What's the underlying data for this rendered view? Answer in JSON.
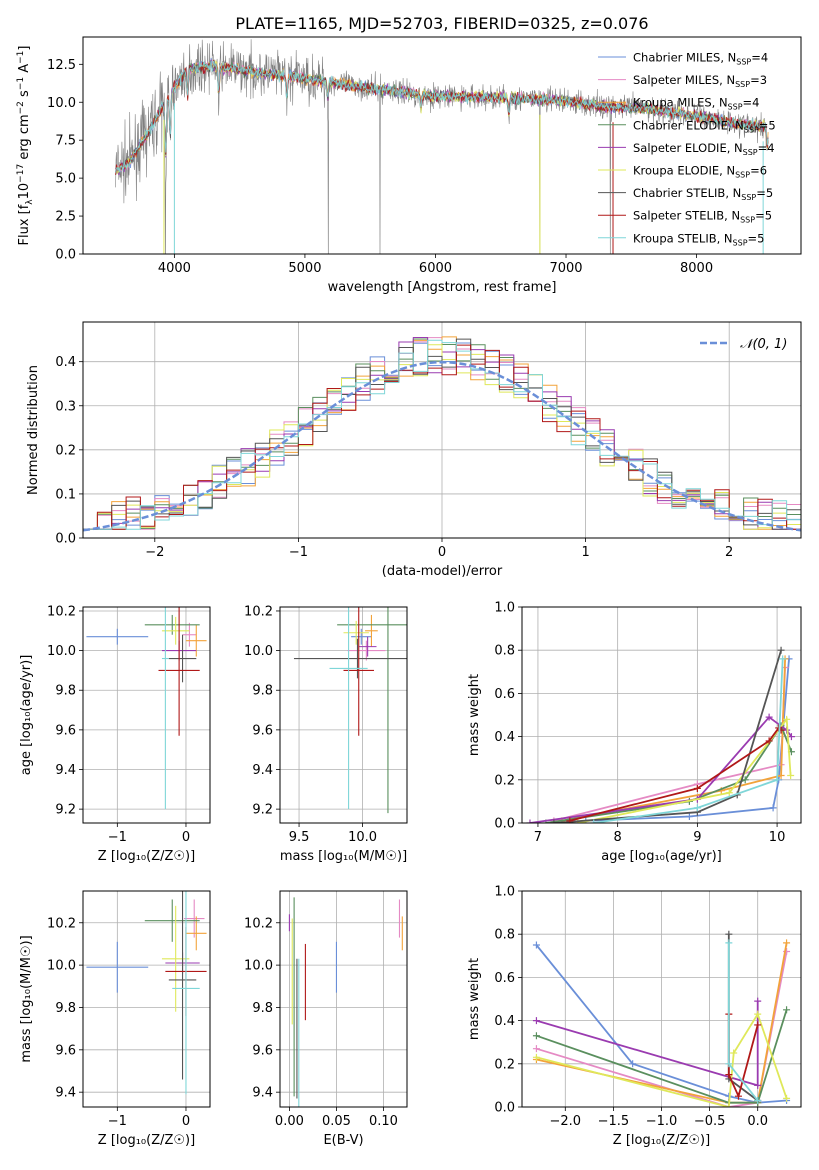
{
  "colors": {
    "chabrier_miles": "#6a8fd8",
    "salpeter_miles": "#e58ac4",
    "kroupa_miles": "#f2a33a",
    "chabrier_elodie": "#5a8f5e",
    "salpeter_elodie": "#9a3bb0",
    "kroupa_elodie": "#dfe85a",
    "chabrier_stelib": "#555555",
    "salpeter_stelib": "#b01818",
    "kroupa_stelib": "#7fd6d8",
    "gaussian": "#6a8fd8",
    "grid": "#b0b0b0",
    "spectrum": "#808080"
  },
  "legend": {
    "chabrier_miles": "Chabrier MILES, N",
    "salpeter_miles": "Salpeter MILES, N",
    "kroupa_miles": "Kroupa MILES, N",
    "chabrier_elodie": "Chabrier ELODIE, N",
    "salpeter_elodie": "Salpeter ELODIE, N",
    "kroupa_elodie": "Kroupa ELODIE, N",
    "chabrier_stelib": "Chabrier STELIB, N",
    "salpeter_stelib": "Salpeter STELIB, N",
    "kroupa_stelib": "Kroupa STELIB, N",
    "sub": "SSP",
    "n_values": [
      "=4",
      "=3",
      "=4",
      "=5",
      "=4",
      "=6",
      "=5",
      "=5",
      "=5"
    ]
  },
  "chart_data": [
    {
      "panel": "spectrum",
      "type": "line",
      "title": "PLATE=1165, MJD=52703, FIBERID=0325, z=0.076",
      "xlabel": "wavelength [Angstrom, rest frame]",
      "ylabel_main": "Flux [f",
      "ylabel_sub": "λ",
      "ylabel_mid": "10",
      "ylabel_sup1": "−17",
      "ylabel_tail": " erg cm",
      "ylabel_sup2": "−2",
      "ylabel_tail2": " s",
      "ylabel_sup3": "−1",
      "ylabel_tail3": " A",
      "ylabel_sup4": "−1",
      "ylabel_end": "]",
      "xlim": [
        3300,
        8800
      ],
      "ylim": [
        0,
        14.3
      ],
      "xticks": [
        "4000",
        "5000",
        "6000",
        "7000",
        "8000"
      ],
      "yticks": [
        "0.0",
        "2.5",
        "5.0",
        "7.5",
        "10.0",
        "12.5"
      ],
      "continuum": [
        [
          3550,
          5.5
        ],
        [
          3650,
          6.0
        ],
        [
          3800,
          8.0
        ],
        [
          3950,
          10.3
        ],
        [
          4100,
          12.2
        ],
        [
          4300,
          12.4
        ],
        [
          4600,
          12.0
        ],
        [
          5000,
          11.6
        ],
        [
          5500,
          10.9
        ],
        [
          6000,
          10.4
        ],
        [
          6500,
          10.3
        ],
        [
          7000,
          10.1
        ],
        [
          7300,
          9.7
        ],
        [
          7600,
          9.6
        ],
        [
          8000,
          9.1
        ],
        [
          8400,
          8.5
        ],
        [
          8550,
          8.4
        ]
      ]
    },
    {
      "panel": "residuals",
      "type": "histogram",
      "xlabel": "(data-model)/error",
      "ylabel": "Normed distribution",
      "legend_label": "𝒩(0, 1)",
      "xlim": [
        -2.5,
        2.5
      ],
      "ylim": [
        0,
        0.49
      ],
      "xticks": [
        "−2",
        "−1",
        "0",
        "1",
        "2"
      ],
      "yticks": [
        "0.0",
        "0.1",
        "0.2",
        "0.3",
        "0.4"
      ],
      "bin_width": 0.1
    },
    {
      "panel": "age_vs_Z",
      "type": "errorbar",
      "xlabel": "Z [log₁₀(Z/Z☉)]",
      "ylabel": "age  [log₁₀(age/yr)]",
      "xlim": [
        -1.5,
        0.35
      ],
      "ylim": [
        9.13,
        10.22
      ],
      "xticks": [
        "−1",
        "0"
      ],
      "yticks": [
        "9.2",
        "9.4",
        "9.6",
        "9.8",
        "10.0",
        "10.2"
      ],
      "points": [
        {
          "model": "chabrier_miles",
          "x": -1.0,
          "xerr": 0.45,
          "y": 10.07,
          "yerr": 0.04
        },
        {
          "model": "salpeter_miles",
          "x": 0.05,
          "xerr": 0.1,
          "y": 10.08,
          "yerr": 0.06
        },
        {
          "model": "kroupa_miles",
          "x": 0.15,
          "xerr": 0.15,
          "y": 10.05,
          "yerr": 0.08
        },
        {
          "model": "chabrier_elodie",
          "x": -0.2,
          "xerr": 0.4,
          "y": 10.13,
          "yerr": 0.05
        },
        {
          "model": "salpeter_elodie",
          "x": -0.1,
          "xerr": 0.25,
          "y": 10.0,
          "yerr": 0.05
        },
        {
          "model": "kroupa_elodie",
          "x": -0.15,
          "xerr": 0.2,
          "y": 10.1,
          "yerr": 0.07
        },
        {
          "model": "chabrier_stelib",
          "x": -0.05,
          "xerr": 0.2,
          "y": 9.96,
          "yerr": 0.12
        },
        {
          "model": "salpeter_stelib",
          "x": -0.1,
          "xerr": 0.3,
          "y": 9.9,
          "yerr": 0.33
        },
        {
          "model": "kroupa_stelib",
          "x": -0.3,
          "xerr": 0.05,
          "y": 9.96,
          "yerr": 0.76
        }
      ]
    },
    {
      "panel": "age_vs_mass",
      "type": "errorbar",
      "xlabel": "mass [log₁₀(M/M☉)]",
      "ylabel": "",
      "xlim": [
        9.35,
        10.35
      ],
      "ylim": [
        9.13,
        10.22
      ],
      "xticks": [
        "9.5",
        "10.0"
      ],
      "yticks": [
        "9.2",
        "9.4",
        "9.6",
        "9.8",
        "10.0",
        "10.2"
      ],
      "points": [
        {
          "model": "chabrier_miles",
          "x": 9.99,
          "xerr": 0.08,
          "y": 10.07,
          "yerr": 0.04
        },
        {
          "model": "salpeter_miles",
          "x": 10.03,
          "xerr": 0.15,
          "y": 10.0,
          "yerr": 0.05
        },
        {
          "model": "kroupa_miles",
          "x": 10.07,
          "xerr": 0.05,
          "y": 10.1,
          "yerr": 0.08
        },
        {
          "model": "chabrier_elodie",
          "x": 10.2,
          "xerr": 0.4,
          "y": 10.13,
          "yerr": 0.95
        },
        {
          "model": "salpeter_elodie",
          "x": 10.04,
          "xerr": 0.07,
          "y": 10.02,
          "yerr": 0.05
        },
        {
          "model": "kroupa_elodie",
          "x": 9.95,
          "xerr": 0.1,
          "y": 10.09,
          "yerr": 0.06
        },
        {
          "model": "chabrier_stelib",
          "x": 9.96,
          "xerr": 0.5,
          "y": 9.96,
          "yerr": 0.1
        },
        {
          "model": "salpeter_stelib",
          "x": 9.97,
          "xerr": 0.12,
          "y": 9.9,
          "yerr": 0.33
        },
        {
          "model": "kroupa_stelib",
          "x": 9.89,
          "xerr": 0.15,
          "y": 9.91,
          "yerr": 0.71
        }
      ]
    },
    {
      "panel": "mass_weight_vs_age",
      "type": "line",
      "xlabel": "age  [log₁₀(age/yr)]",
      "ylabel": "mass weight",
      "xlim": [
        6.8,
        10.3
      ],
      "ylim": [
        0,
        1.0
      ],
      "xticks": [
        "7",
        "8",
        "9",
        "10"
      ],
      "yticks": [
        "0.0",
        "0.2",
        "0.4",
        "0.6",
        "0.8",
        "1.0"
      ],
      "series": [
        {
          "model": "chabrier_miles",
          "x": [
            7.6,
            8.9,
            9.95,
            10.02,
            10.15
          ],
          "y": [
            0.01,
            0.03,
            0.07,
            0.2,
            0.76
          ]
        },
        {
          "model": "salpeter_miles",
          "x": [
            7.2,
            9.0,
            10.05,
            10.1
          ],
          "y": [
            0.01,
            0.18,
            0.27,
            0.72
          ]
        },
        {
          "model": "kroupa_miles",
          "x": [
            7.3,
            9.3,
            10.05,
            10.1
          ],
          "y": [
            0.01,
            0.15,
            0.22,
            0.76
          ]
        },
        {
          "model": "chabrier_elodie",
          "x": [
            7.1,
            8.9,
            9.6,
            10.05,
            10.18
          ],
          "y": [
            0.0,
            0.1,
            0.2,
            0.45,
            0.33
          ]
        },
        {
          "model": "salpeter_elodie",
          "x": [
            6.9,
            9.0,
            9.9,
            10.12,
            10.18
          ],
          "y": [
            0.0,
            0.11,
            0.49,
            0.43,
            0.4
          ]
        },
        {
          "model": "kroupa_elodie",
          "x": [
            7.5,
            9.4,
            10.12,
            10.17
          ],
          "y": [
            0.0,
            0.14,
            0.48,
            0.22
          ]
        },
        {
          "model": "chabrier_stelib",
          "x": [
            7.2,
            9.0,
            9.5,
            10.05
          ],
          "y": [
            0.0,
            0.05,
            0.13,
            0.8
          ]
        },
        {
          "model": "salpeter_stelib",
          "x": [
            7.4,
            9.0,
            9.9,
            10.02,
            10.05
          ],
          "y": [
            0.01,
            0.16,
            0.38,
            0.44,
            0.43
          ]
        },
        {
          "model": "kroupa_stelib",
          "x": [
            7.7,
            9.0,
            10.0,
            10.07
          ],
          "y": [
            0.0,
            0.07,
            0.2,
            0.76
          ]
        }
      ]
    },
    {
      "panel": "mass_vs_Z",
      "type": "errorbar",
      "xlabel": "Z [log₁₀(Z/Z☉)]",
      "ylabel": "mass [log₁₀(M/M☉)]",
      "xlim": [
        -1.5,
        0.35
      ],
      "ylim": [
        9.33,
        10.35
      ],
      "xticks": [
        "−1",
        "0"
      ],
      "yticks": [
        "9.4",
        "9.6",
        "9.8",
        "10.0",
        "10.2"
      ],
      "points": [
        {
          "model": "chabrier_miles",
          "x": -1.0,
          "xerr": 0.45,
          "y": 9.99,
          "yerr": 0.12
        },
        {
          "model": "salpeter_miles",
          "x": 0.12,
          "xerr": 0.15,
          "y": 10.22,
          "yerr": 0.09
        },
        {
          "model": "kroupa_miles",
          "x": 0.15,
          "xerr": 0.15,
          "y": 10.15,
          "yerr": 0.08
        },
        {
          "model": "chabrier_elodie",
          "x": -0.2,
          "xerr": 0.4,
          "y": 10.21,
          "yerr": 0.1
        },
        {
          "model": "salpeter_elodie",
          "x": -0.05,
          "xerr": 0.25,
          "y": 10.01,
          "yerr": 0.05
        },
        {
          "model": "kroupa_elodie",
          "x": -0.15,
          "xerr": 0.2,
          "y": 10.03,
          "yerr": 0.25
        },
        {
          "model": "chabrier_stelib",
          "x": -0.05,
          "xerr": 0.2,
          "y": 9.93,
          "yerr": 0.47
        },
        {
          "model": "salpeter_stelib",
          "x": 0.0,
          "xerr": 0.3,
          "y": 9.97,
          "yerr": 0.21
        },
        {
          "model": "kroupa_stelib",
          "x": 0.0,
          "xerr": 0.2,
          "y": 9.89,
          "yerr": 0.5
        }
      ]
    },
    {
      "panel": "mass_vs_EBV",
      "type": "errorbar",
      "xlabel": "E(B-V)",
      "ylabel": "",
      "xlim": [
        -0.01,
        0.125
      ],
      "ylim": [
        9.33,
        10.35
      ],
      "xticks": [
        "0.00",
        "0.05",
        "0.10"
      ],
      "yticks": [
        "9.4",
        "9.6",
        "9.8",
        "10.0",
        "10.2"
      ],
      "points": [
        {
          "model": "chabrier_miles",
          "x": 0.05,
          "xerr": 0.0,
          "y": 9.99,
          "yerr": 0.12
        },
        {
          "model": "salpeter_miles",
          "x": 0.117,
          "xerr": 0.0,
          "y": 10.22,
          "yerr": 0.09
        },
        {
          "model": "kroupa_miles",
          "x": 0.12,
          "xerr": 0.0,
          "y": 10.15,
          "yerr": 0.08
        },
        {
          "model": "chabrier_elodie",
          "x": 0.005,
          "xerr": 0.0,
          "y": 9.85,
          "yerr": 0.47
        },
        {
          "model": "salpeter_elodie",
          "x": 0.0,
          "xerr": 0.0,
          "y": 10.2,
          "yerr": 0.04
        },
        {
          "model": "kroupa_elodie",
          "x": 0.003,
          "xerr": 0.0,
          "y": 9.97,
          "yerr": 0.25
        },
        {
          "model": "chabrier_stelib",
          "x": 0.008,
          "xerr": 0.0,
          "y": 9.7,
          "yerr": 0.33
        },
        {
          "model": "salpeter_stelib",
          "x": 0.017,
          "xerr": 0.0,
          "y": 9.92,
          "yerr": 0.18
        },
        {
          "model": "kroupa_stelib",
          "x": 0.01,
          "xerr": 0.0,
          "y": 9.68,
          "yerr": 0.35
        }
      ]
    },
    {
      "panel": "mass_weight_vs_Z",
      "type": "line",
      "xlabel": "Z [log₁₀(Z/Z☉)]",
      "ylabel": "mass weight",
      "xlim": [
        -2.45,
        0.45
      ],
      "ylim": [
        0,
        1.0
      ],
      "xticks": [
        "−2.0",
        "−1.5",
        "−1.0",
        "−0.5",
        "0.0"
      ],
      "yticks": [
        "0.0",
        "0.2",
        "0.4",
        "0.6",
        "0.8",
        "1.0"
      ],
      "series": [
        {
          "model": "chabrier_miles",
          "x": [
            -2.3,
            -1.3,
            -0.3,
            0.0,
            0.3
          ],
          "y": [
            0.75,
            0.2,
            0.05,
            0.02,
            0.03
          ]
        },
        {
          "model": "salpeter_miles",
          "x": [
            -2.3,
            -0.3,
            0.0,
            0.3
          ],
          "y": [
            0.27,
            0.0,
            0.02,
            0.72
          ]
        },
        {
          "model": "kroupa_miles",
          "x": [
            -2.3,
            -0.3,
            0.0,
            0.3
          ],
          "y": [
            0.22,
            0.02,
            0.02,
            0.76
          ]
        },
        {
          "model": "chabrier_elodie",
          "x": [
            -2.3,
            -0.3,
            0.0,
            0.3
          ],
          "y": [
            0.33,
            0.02,
            0.02,
            0.45
          ]
        },
        {
          "model": "salpeter_elodie",
          "x": [
            -2.3,
            0.0,
            0.0
          ],
          "y": [
            0.4,
            0.1,
            0.49
          ]
        },
        {
          "model": "kroupa_elodie",
          "x": [
            -2.3,
            -0.3,
            -0.25,
            0.0,
            0.3
          ],
          "y": [
            0.23,
            0.0,
            0.25,
            0.43,
            0.04
          ]
        },
        {
          "model": "chabrier_stelib",
          "x": [
            -0.3,
            -0.3,
            0.0
          ],
          "y": [
            0.8,
            0.13,
            0.03
          ]
        },
        {
          "model": "salpeter_stelib",
          "x": [
            -0.3,
            -0.3,
            -0.2,
            0.0
          ],
          "y": [
            0.43,
            0.15,
            0.05,
            0.38
          ]
        },
        {
          "model": "kroupa_stelib",
          "x": [
            -0.3,
            -0.3,
            0.0
          ],
          "y": [
            0.76,
            0.2,
            0.03
          ]
        }
      ]
    }
  ]
}
